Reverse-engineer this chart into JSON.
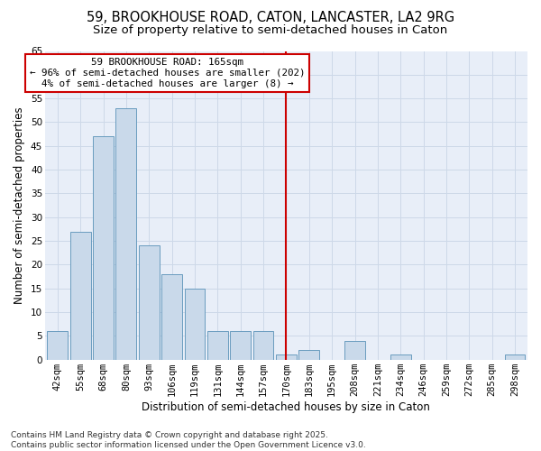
{
  "title_line1": "59, BROOKHOUSE ROAD, CATON, LANCASTER, LA2 9RG",
  "title_line2": "Size of property relative to semi-detached houses in Caton",
  "xlabel": "Distribution of semi-detached houses by size in Caton",
  "ylabel": "Number of semi-detached properties",
  "categories": [
    "42sqm",
    "55sqm",
    "68sqm",
    "80sqm",
    "93sqm",
    "106sqm",
    "119sqm",
    "131sqm",
    "144sqm",
    "157sqm",
    "170sqm",
    "183sqm",
    "195sqm",
    "208sqm",
    "221sqm",
    "234sqm",
    "246sqm",
    "259sqm",
    "272sqm",
    "285sqm",
    "298sqm"
  ],
  "values": [
    6,
    27,
    47,
    53,
    24,
    18,
    15,
    6,
    6,
    6,
    1,
    2,
    0,
    4,
    0,
    1,
    0,
    0,
    0,
    0,
    1
  ],
  "bar_color": "#c9d9ea",
  "bar_edge_color": "#6a9cbf",
  "vline_index": 10,
  "vline_color": "#cc0000",
  "annotation_text": "59 BROOKHOUSE ROAD: 165sqm\n← 96% of semi-detached houses are smaller (202)\n4% of semi-detached houses are larger (8) →",
  "annotation_box_edgecolor": "#cc0000",
  "annotation_box_facecolor": "#ffffff",
  "ylim": [
    0,
    65
  ],
  "yticks": [
    0,
    5,
    10,
    15,
    20,
    25,
    30,
    35,
    40,
    45,
    50,
    55,
    60,
    65
  ],
  "grid_color": "#cdd8e8",
  "background_color": "#e8eef8",
  "footer_text": "Contains HM Land Registry data © Crown copyright and database right 2025.\nContains public sector information licensed under the Open Government Licence v3.0.",
  "title_fontsize": 10.5,
  "subtitle_fontsize": 9.5,
  "axis_label_fontsize": 8.5,
  "tick_fontsize": 7.5,
  "annotation_fontsize": 7.8,
  "footer_fontsize": 6.5
}
